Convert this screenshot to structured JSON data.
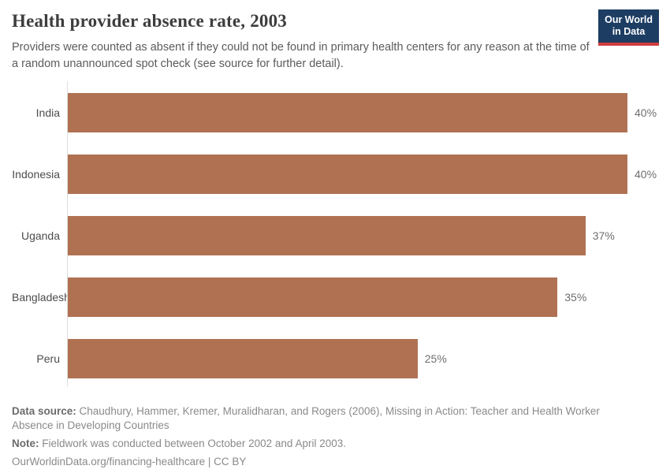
{
  "header": {
    "title": "Health provider absence rate, 2003",
    "subtitle": "Providers were counted as absent if they could not be found in primary health centers for any reason at the time of a random unannounced spot check (see source for further detail).",
    "logo": {
      "line1": "Our World",
      "line2": "in Data"
    }
  },
  "chart_data": {
    "type": "bar",
    "orientation": "horizontal",
    "categories": [
      "India",
      "Indonesia",
      "Uganda",
      "Bangladesh",
      "Peru"
    ],
    "values": [
      40,
      40,
      37,
      35,
      25
    ],
    "value_labels": [
      "40%",
      "40%",
      "37%",
      "35%",
      "25%"
    ],
    "unit": "%",
    "xlim": [
      0,
      40
    ],
    "grid": false,
    "legend": false,
    "bar_color": "#af7152"
  },
  "footer": {
    "data_source_label": "Data source:",
    "data_source_text": " Chaudhury, Hammer, Kremer, Muralidharan, and Rogers (2006), Missing in Action: Teacher and Health Worker Absence in Developing Countries",
    "note_label": "Note:",
    "note_text": " Fieldwork was conducted between October 2002 and April 2003.",
    "link_text": "OurWorldinData.org/financing-healthcare",
    "separator": " | ",
    "license_text": "CC BY"
  },
  "colors": {
    "bar": "#af7152",
    "logo_background": "#1d3d63",
    "logo_underline": "#cf3c3c",
    "axis_line": "#dedede",
    "title_text": "#3d3d3d",
    "subtitle_text": "#5b5b5b",
    "footer_text": "#8a8a8a"
  }
}
